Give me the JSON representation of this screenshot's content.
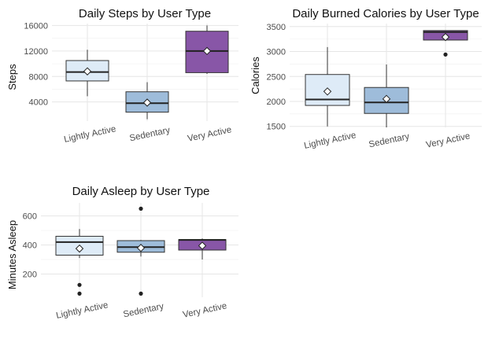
{
  "colors": {
    "light": "#deebf7",
    "mid": "#9ebcda",
    "dark": "#8856a7"
  },
  "chart_data": [
    {
      "type": "box",
      "title": "Daily Steps by User Type",
      "ylabel": "Steps",
      "xlabel": "",
      "ylim": [
        1000,
        16300
      ],
      "yticks": [
        4000,
        8000,
        12000,
        16000
      ],
      "ytick_labels": [
        "4000",
        "8000",
        "12000",
        "16000"
      ],
      "grid": true,
      "categories": [
        "Lightly Active",
        "Sedentary",
        "Very Active"
      ],
      "boxes": [
        {
          "q1": 7300,
          "median": 8700,
          "q3": 10500,
          "whisker_low": 4900,
          "whisker_high": 12200,
          "mean": 8800,
          "outliers": [],
          "color": "light"
        },
        {
          "q1": 2400,
          "median": 3800,
          "q3": 5600,
          "whisker_low": 1300,
          "whisker_high": 7100,
          "mean": 3900,
          "outliers": [],
          "color": "mid"
        },
        {
          "q1": 8600,
          "median": 12000,
          "q3": 15100,
          "whisker_low": 8400,
          "whisker_high": 16000,
          "mean": 12000,
          "outliers": [],
          "color": "dark"
        }
      ]
    },
    {
      "type": "box",
      "title": "Daily Burned Calories by User Type",
      "ylabel": "Calories",
      "xlabel": "",
      "ylim": [
        1480,
        3560
      ],
      "yticks": [
        1500,
        2000,
        2500,
        3000,
        3500
      ],
      "ytick_labels": [
        "1500",
        "2000",
        "2500",
        "3000",
        "3500"
      ],
      "grid": true,
      "categories": [
        "Lightly Active",
        "Sedentary",
        "Very Active"
      ],
      "boxes": [
        {
          "q1": 1920,
          "median": 2040,
          "q3": 2540,
          "whisker_low": 1500,
          "whisker_high": 3090,
          "mean": 2200,
          "outliers": [],
          "color": "light"
        },
        {
          "q1": 1760,
          "median": 1980,
          "q3": 2280,
          "whisker_low": 1480,
          "whisker_high": 2740,
          "mean": 2050,
          "outliers": [],
          "color": "mid"
        },
        {
          "q1": 3230,
          "median": 3390,
          "q3": 3420,
          "whisker_low": 3230,
          "whisker_high": 3420,
          "mean": 3290,
          "outliers": [
            2940
          ],
          "color": "dark"
        }
      ]
    },
    {
      "type": "box",
      "title": "Daily Asleep by User Type",
      "ylabel": "Minutes Asleep",
      "xlabel": "",
      "ylim": [
        40,
        690
      ],
      "yticks": [
        200,
        400,
        600
      ],
      "ytick_labels": [
        "200",
        "400",
        "600"
      ],
      "grid": true,
      "categories": [
        "Lightly Active",
        "Sedentary",
        "Very Active"
      ],
      "boxes": [
        {
          "q1": 330,
          "median": 420,
          "q3": 460,
          "whisker_low": 310,
          "whisker_high": 510,
          "mean": 375,
          "outliers": [
            125,
            65
          ],
          "color": "light"
        },
        {
          "q1": 350,
          "median": 385,
          "q3": 430,
          "whisker_low": 320,
          "whisker_high": 435,
          "mean": 380,
          "outliers": [
            650,
            65
          ],
          "color": "mid"
        },
        {
          "q1": 365,
          "median": 435,
          "q3": 437,
          "whisker_low": 300,
          "whisker_high": 445,
          "mean": 395,
          "outliers": [],
          "color": "dark"
        }
      ]
    }
  ]
}
